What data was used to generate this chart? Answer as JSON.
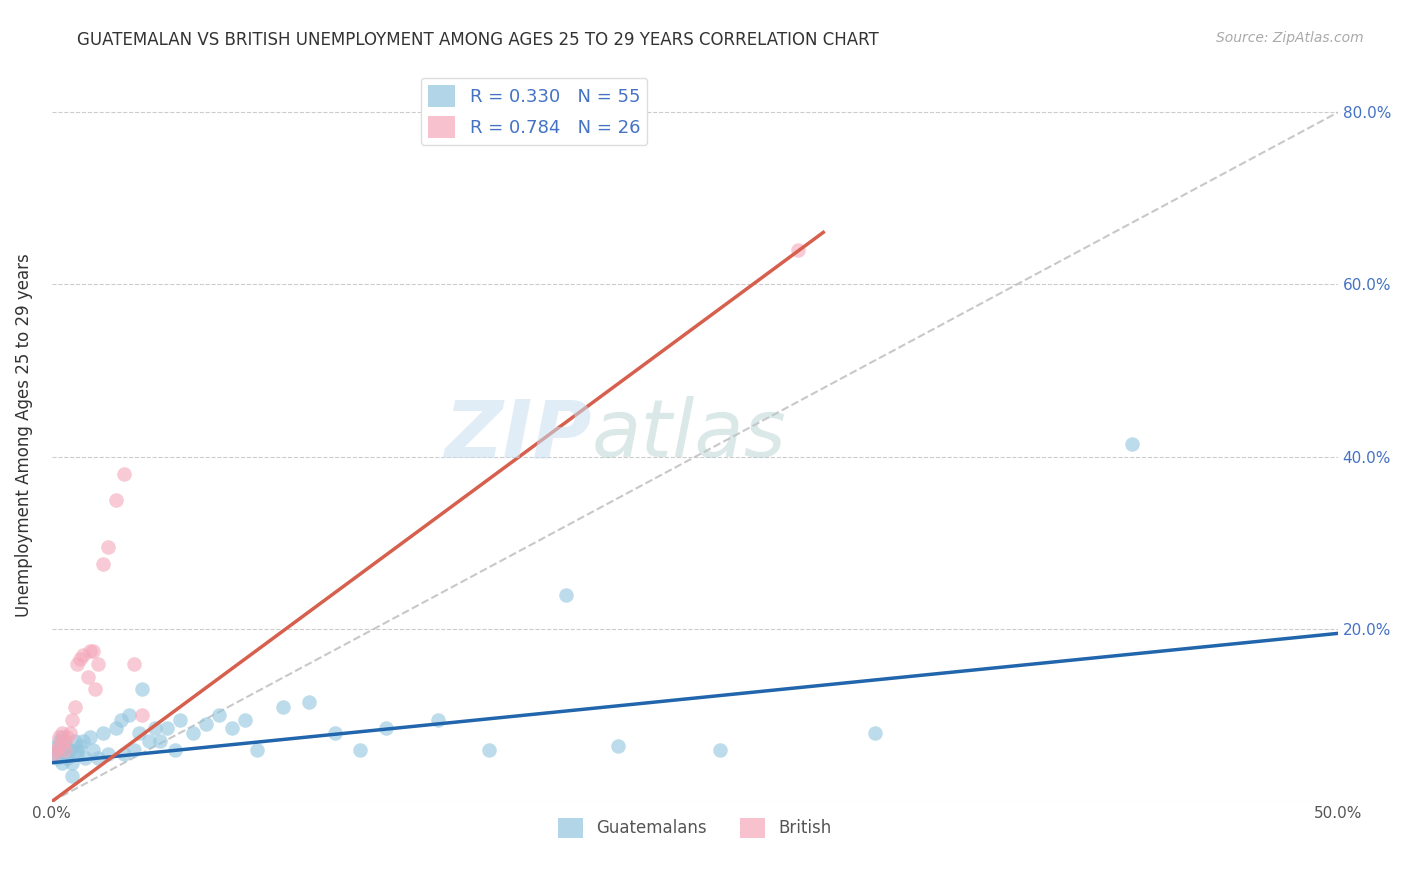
{
  "title": "GUATEMALAN VS BRITISH UNEMPLOYMENT AMONG AGES 25 TO 29 YEARS CORRELATION CHART",
  "source": "Source: ZipAtlas.com",
  "ylabel": "Unemployment Among Ages 25 to 29 years",
  "xlim": [
    0.0,
    0.5
  ],
  "ylim": [
    0.0,
    0.85
  ],
  "xticks": [
    0.0,
    0.1,
    0.2,
    0.3,
    0.4,
    0.5
  ],
  "yticks": [
    0.0,
    0.2,
    0.4,
    0.6,
    0.8
  ],
  "xticklabels": [
    "0.0%",
    "",
    "",
    "",
    "",
    "50.0%"
  ],
  "yticklabels": [
    "",
    "20.0%",
    "40.0%",
    "60.0%",
    "80.0%"
  ],
  "blue_color": "#92c5de",
  "pink_color": "#f4a7b9",
  "blue_line_color": "#2166ac",
  "pink_line_color": "#d6604d",
  "diagonal_color": "#bbbbbb",
  "R_blue": 0.33,
  "N_blue": 55,
  "R_pink": 0.784,
  "N_pink": 26,
  "blue_line_x0": 0.0,
  "blue_line_y0": 0.045,
  "blue_line_x1": 0.5,
  "blue_line_y1": 0.195,
  "pink_line_x0": 0.0,
  "pink_line_y0": 0.0,
  "pink_line_x1": 0.3,
  "pink_line_y1": 0.66,
  "guatemalan_x": [
    0.001,
    0.002,
    0.002,
    0.003,
    0.003,
    0.004,
    0.004,
    0.005,
    0.005,
    0.006,
    0.007,
    0.008,
    0.009,
    0.01,
    0.01,
    0.011,
    0.012,
    0.013,
    0.015,
    0.016,
    0.018,
    0.02,
    0.022,
    0.025,
    0.027,
    0.028,
    0.03,
    0.032,
    0.034,
    0.035,
    0.038,
    0.04,
    0.042,
    0.045,
    0.048,
    0.05,
    0.055,
    0.06,
    0.065,
    0.07,
    0.075,
    0.08,
    0.09,
    0.1,
    0.11,
    0.12,
    0.13,
    0.15,
    0.17,
    0.2,
    0.22,
    0.26,
    0.32,
    0.42,
    0.008
  ],
  "guatemalan_y": [
    0.055,
    0.05,
    0.065,
    0.06,
    0.07,
    0.045,
    0.075,
    0.055,
    0.065,
    0.05,
    0.06,
    0.045,
    0.07,
    0.06,
    0.055,
    0.065,
    0.07,
    0.05,
    0.075,
    0.06,
    0.05,
    0.08,
    0.055,
    0.085,
    0.095,
    0.055,
    0.1,
    0.06,
    0.08,
    0.13,
    0.07,
    0.085,
    0.07,
    0.085,
    0.06,
    0.095,
    0.08,
    0.09,
    0.1,
    0.085,
    0.095,
    0.06,
    0.11,
    0.115,
    0.08,
    0.06,
    0.085,
    0.095,
    0.06,
    0.24,
    0.065,
    0.06,
    0.08,
    0.415,
    0.03
  ],
  "british_x": [
    0.001,
    0.002,
    0.003,
    0.003,
    0.004,
    0.005,
    0.005,
    0.006,
    0.007,
    0.008,
    0.009,
    0.01,
    0.011,
    0.012,
    0.014,
    0.015,
    0.016,
    0.017,
    0.018,
    0.02,
    0.022,
    0.025,
    0.028,
    0.032,
    0.035,
    0.29
  ],
  "british_y": [
    0.055,
    0.06,
    0.065,
    0.075,
    0.08,
    0.06,
    0.07,
    0.075,
    0.08,
    0.095,
    0.11,
    0.16,
    0.165,
    0.17,
    0.145,
    0.175,
    0.175,
    0.13,
    0.16,
    0.275,
    0.295,
    0.35,
    0.38,
    0.16,
    0.1,
    0.64
  ],
  "watermark_zip": "ZIP",
  "watermark_atlas": "atlas",
  "background_color": "#ffffff",
  "grid_color": "#cccccc"
}
